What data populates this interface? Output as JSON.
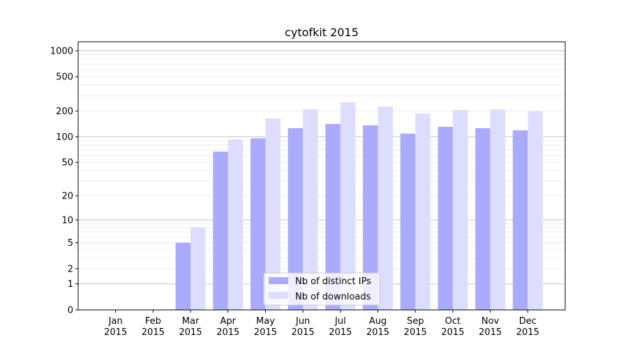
{
  "chart_data": {
    "type": "bar",
    "title": "cytofkit 2015",
    "xlabel": "",
    "ylabel": "",
    "yscale": "symlog (log10(1+y))",
    "ylim": [
      0,
      1270
    ],
    "yticks": [
      0,
      1,
      2,
      5,
      10,
      20,
      50,
      100,
      200,
      500,
      1000
    ],
    "grid": true,
    "legend_placement": "lower-center",
    "categories": [
      "Jan\n2015",
      "Feb\n2015",
      "Mar\n2015",
      "Apr\n2015",
      "May\n2015",
      "Jun\n2015",
      "Jul\n2015",
      "Aug\n2015",
      "Sep\n2015",
      "Oct\n2015",
      "Nov\n2015",
      "Dec\n2015"
    ],
    "series": [
      {
        "name": "Nb of distinct IPs",
        "color": "#aaaaff",
        "values": [
          0,
          0,
          5,
          67,
          96,
          126,
          141,
          136,
          109,
          131,
          126,
          119
        ]
      },
      {
        "name": "Nb of downloads",
        "color": "#ddddff",
        "values": [
          0,
          0,
          8,
          93,
          164,
          209,
          252,
          225,
          187,
          205,
          209,
          198
        ]
      }
    ]
  }
}
